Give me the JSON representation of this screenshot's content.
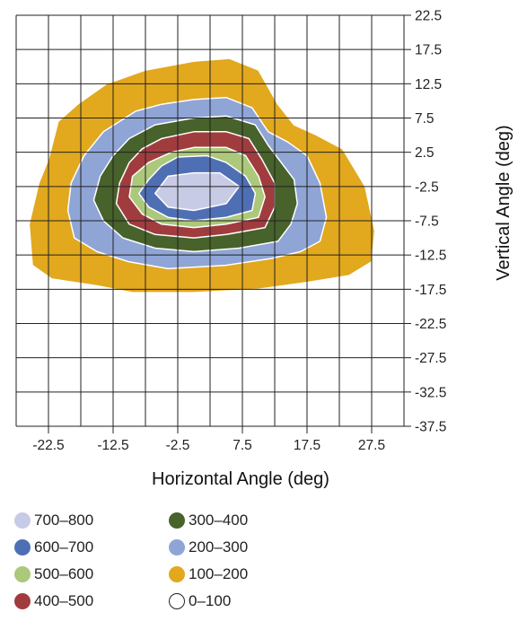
{
  "chart_data": {
    "type": "heatmap",
    "xlabel": "Horizontal Angle (deg)",
    "ylabel": "Vertical Angle (deg)",
    "xlim": [
      -27.5,
      32.5
    ],
    "ylim": [
      -37.5,
      22.5
    ],
    "x_ticks": [
      "-22.5",
      "-12.5",
      "-2.5",
      "7.5",
      "17.5",
      "27.5"
    ],
    "y_ticks": [
      "22.5",
      "17.5",
      "12.5",
      "7.5",
      "2.5",
      "-2.5",
      "-7.5",
      "-12.5",
      "-17.5",
      "-22.5",
      "-27.5",
      "-32.5",
      "-37.5"
    ],
    "grid": true,
    "legend_position": "bottom-left",
    "levels": [
      {
        "label": "100–200",
        "color": "#e2a81e",
        "polygon": [
          [
            -13.5,
            12.5
          ],
          [
            -7.5,
            14.5
          ],
          [
            0,
            15.8
          ],
          [
            5.5,
            16.2
          ],
          [
            10,
            14.5
          ],
          [
            13,
            9.5
          ],
          [
            15.5,
            6.5
          ],
          [
            19,
            5
          ],
          [
            23,
            3
          ],
          [
            26.5,
            -2.5
          ],
          [
            28,
            -9
          ],
          [
            27.5,
            -13.5
          ],
          [
            24,
            -15.5
          ],
          [
            17.5,
            -16.5
          ],
          [
            10,
            -17.5
          ],
          [
            0,
            -18
          ],
          [
            -9.5,
            -18
          ],
          [
            -15,
            -17
          ],
          [
            -22,
            -16
          ],
          [
            -25,
            -14
          ],
          [
            -25.5,
            -8
          ],
          [
            -24,
            -2
          ],
          [
            -22.5,
            1.5
          ],
          [
            -21,
            7
          ],
          [
            -18,
            9.5
          ]
        ]
      },
      {
        "label": "200–300",
        "color": "#8fa5d6",
        "polygon": [
          [
            -9,
            8.5
          ],
          [
            -5,
            9.5
          ],
          [
            0,
            10.2
          ],
          [
            5,
            10.5
          ],
          [
            9,
            9
          ],
          [
            11.5,
            5.5
          ],
          [
            14.5,
            4
          ],
          [
            17.5,
            2
          ],
          [
            19.5,
            -2
          ],
          [
            20.5,
            -7
          ],
          [
            19.5,
            -10.5
          ],
          [
            16.5,
            -12
          ],
          [
            12,
            -13
          ],
          [
            5,
            -14
          ],
          [
            -4,
            -14.5
          ],
          [
            -10,
            -13.5
          ],
          [
            -15,
            -12
          ],
          [
            -18.5,
            -10
          ],
          [
            -19.5,
            -6
          ],
          [
            -19,
            -2
          ],
          [
            -17,
            2
          ],
          [
            -14,
            5.5
          ]
        ]
      },
      {
        "label": "300–400",
        "color": "#47622a",
        "polygon": [
          [
            -6,
            6.5
          ],
          [
            0,
            7.5
          ],
          [
            5,
            7.8
          ],
          [
            9.5,
            6.5
          ],
          [
            11.5,
            3.5
          ],
          [
            13.5,
            1
          ],
          [
            15.5,
            -1.5
          ],
          [
            16,
            -5
          ],
          [
            15,
            -8
          ],
          [
            13,
            -10.5
          ],
          [
            7,
            -11.5
          ],
          [
            0,
            -12
          ],
          [
            -6,
            -11.5
          ],
          [
            -11,
            -10
          ],
          [
            -14,
            -7.5
          ],
          [
            -15.5,
            -4.5
          ],
          [
            -14.5,
            -1
          ],
          [
            -12.5,
            2
          ],
          [
            -10,
            4.5
          ]
        ]
      },
      {
        "label": "400–500",
        "color": "#a13c3e",
        "polygon": [
          [
            -5,
            4.5
          ],
          [
            0,
            5.5
          ],
          [
            5,
            5.5
          ],
          [
            8.5,
            4.5
          ],
          [
            10.5,
            1.5
          ],
          [
            12.5,
            -2
          ],
          [
            12.5,
            -5.5
          ],
          [
            11,
            -8.5
          ],
          [
            5,
            -9.5
          ],
          [
            0,
            -10
          ],
          [
            -6,
            -9.5
          ],
          [
            -10,
            -8
          ],
          [
            -12,
            -5
          ],
          [
            -11.5,
            -2
          ],
          [
            -10,
            1
          ],
          [
            -8,
            3
          ]
        ]
      },
      {
        "label": "500–600",
        "color": "#acc87b",
        "polygon": [
          [
            -3.5,
            2.5
          ],
          [
            0,
            3.2
          ],
          [
            5,
            3.2
          ],
          [
            8,
            2
          ],
          [
            10,
            -1
          ],
          [
            11,
            -4
          ],
          [
            10,
            -7
          ],
          [
            5,
            -8
          ],
          [
            0,
            -8.5
          ],
          [
            -5,
            -8
          ],
          [
            -8,
            -6.5
          ],
          [
            -10,
            -4
          ],
          [
            -9.5,
            -1
          ],
          [
            -7,
            1
          ]
        ]
      },
      {
        "label": "600–700",
        "color": "#4f6fb5",
        "polygon": [
          [
            -2.5,
            1.8
          ],
          [
            2,
            2
          ],
          [
            5,
            1
          ],
          [
            8,
            -1
          ],
          [
            9.5,
            -3.5
          ],
          [
            9,
            -6
          ],
          [
            5,
            -7
          ],
          [
            0,
            -7.5
          ],
          [
            -4,
            -7
          ],
          [
            -7,
            -5.5
          ],
          [
            -8.5,
            -3.5
          ],
          [
            -7,
            -1.5
          ],
          [
            -5,
            0.5
          ]
        ]
      },
      {
        "label": "700–800",
        "color": "#c7cbe6",
        "polygon": [
          [
            -4,
            -1
          ],
          [
            0,
            -0.5
          ],
          [
            4,
            -0.5
          ],
          [
            7,
            -2.5
          ],
          [
            5,
            -5
          ],
          [
            0,
            -6
          ],
          [
            -4,
            -5.5
          ],
          [
            -6,
            -3.5
          ]
        ]
      },
      {
        "label": "0–100",
        "color": "#ffffff",
        "polygon": []
      }
    ]
  },
  "legend": {
    "items": [
      {
        "label": "700–800",
        "color": "#c7cbe6"
      },
      {
        "label": "600–700",
        "color": "#4f6fb5"
      },
      {
        "label": "500–600",
        "color": "#acc87b"
      },
      {
        "label": "400–500",
        "color": "#a13c3e"
      },
      {
        "label": "300–400",
        "color": "#47622a"
      },
      {
        "label": "200–300",
        "color": "#8fa5d6"
      },
      {
        "label": "100–200",
        "color": "#e2a81e"
      },
      {
        "label": "0–100",
        "color": "#ffffff"
      }
    ]
  },
  "colors": {
    "grid": "#222222",
    "contour_edge": "#ffffff",
    "text": "#222222"
  }
}
